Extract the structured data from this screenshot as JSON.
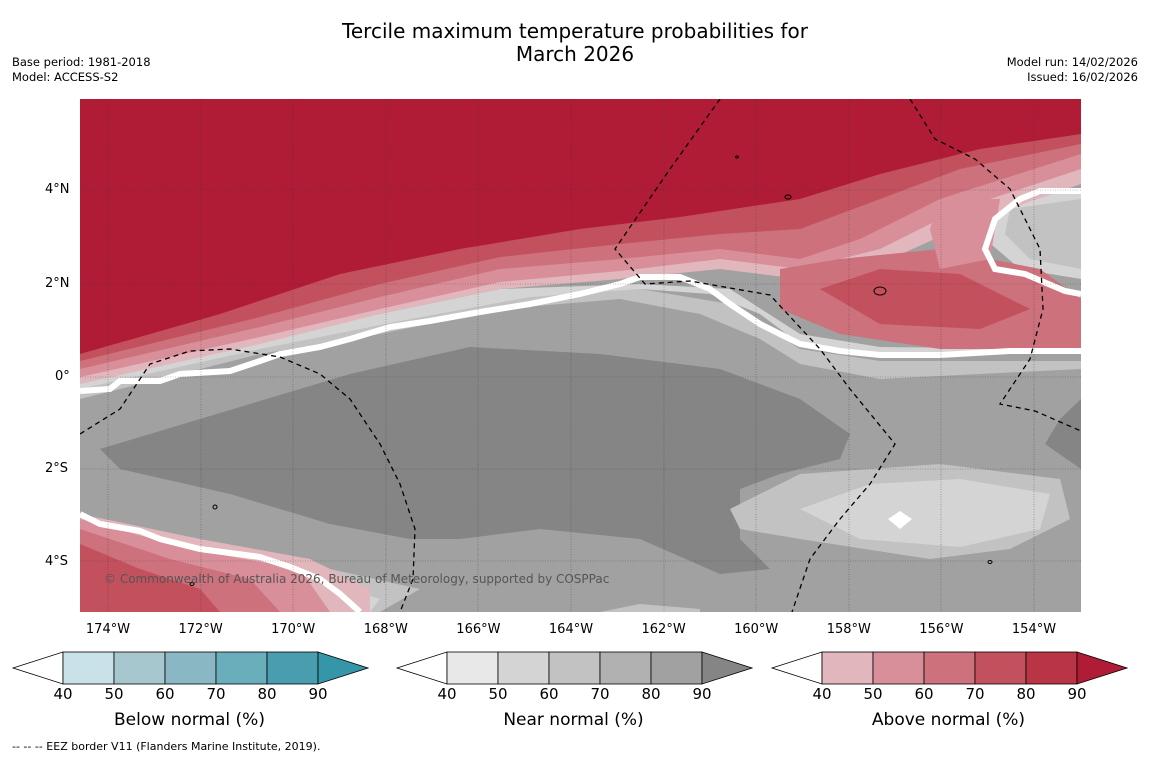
{
  "title": {
    "line1": "Tercile maximum temperature probabilities for",
    "line2": "March 2026"
  },
  "meta": {
    "base_period": "Base period: 1981-2018",
    "model": "Model: ACCESS-S2",
    "model_run": "Model run: 14/02/2026",
    "issued": "Issued: 16/02/2026"
  },
  "map": {
    "lat_labels": [
      "4°N",
      "2°N",
      "0°",
      "2°S",
      "4°S"
    ],
    "lon_labels": [
      "174°W",
      "172°W",
      "170°W",
      "168°W",
      "166°W",
      "164°W",
      "162°W",
      "160°W",
      "158°W",
      "156°W",
      "154°W"
    ],
    "copyright": "© Commonwealth of Australia 2026, Bureau of Meteorology, supported by COSPPac"
  },
  "legends": [
    {
      "title": "Below normal (%)",
      "ticks": [
        "40",
        "50",
        "60",
        "70",
        "80",
        "90"
      ],
      "colors": [
        "#ffffff",
        "#c9e1e8",
        "#a6c7cd",
        "#89b7c4",
        "#6aaebb",
        "#4a9daf",
        "#3596a8"
      ]
    },
    {
      "title": "Near normal (%)",
      "ticks": [
        "40",
        "50",
        "60",
        "70",
        "80",
        "90"
      ],
      "colors": [
        "#ffffff",
        "#e8e8e8",
        "#d4d4d4",
        "#c2c2c2",
        "#b1b1b1",
        "#a1a1a1",
        "#858585"
      ]
    },
    {
      "title": "Above normal (%)",
      "ticks": [
        "40",
        "50",
        "60",
        "70",
        "80",
        "90"
      ],
      "colors": [
        "#ffffff",
        "#e1b6bc",
        "#d88f99",
        "#cd717c",
        "#c3505d",
        "#b93444",
        "#b01c36"
      ]
    }
  ],
  "footnote": "--  --  -- EEZ border V11 (Flanders Marine Institute, 2019)."
}
